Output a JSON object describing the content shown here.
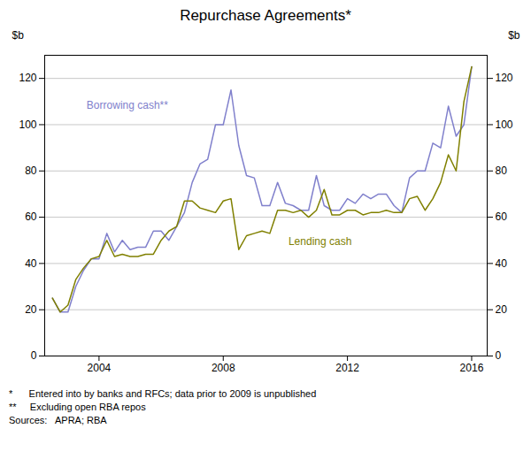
{
  "chart_data": {
    "type": "line",
    "title": "Repurchase Agreements*",
    "ylabel": "$b",
    "y2label": "$b",
    "x": [
      2002.5,
      2002.75,
      2003.0,
      2003.25,
      2003.5,
      2003.75,
      2004.0,
      2004.25,
      2004.5,
      2004.75,
      2005.0,
      2005.25,
      2005.5,
      2005.75,
      2006.0,
      2006.25,
      2006.5,
      2006.75,
      2007.0,
      2007.25,
      2007.5,
      2007.75,
      2008.0,
      2008.25,
      2008.5,
      2008.75,
      2009.0,
      2009.25,
      2009.5,
      2009.75,
      2010.0,
      2010.25,
      2010.5,
      2010.75,
      2011.0,
      2011.25,
      2011.5,
      2011.75,
      2012.0,
      2012.25,
      2012.5,
      2012.75,
      2013.0,
      2013.25,
      2013.5,
      2013.75,
      2014.0,
      2014.25,
      2014.5,
      2014.75,
      2015.0,
      2015.25,
      2015.5,
      2015.75,
      2016.0
    ],
    "series": [
      {
        "name": "Borrowing cash**",
        "color": "#8080cc",
        "values": [
          25,
          19,
          19,
          30,
          37,
          42,
          42,
          53,
          45,
          50,
          46,
          47,
          47,
          54,
          54,
          50,
          56,
          62,
          75,
          83,
          85,
          100,
          100,
          115,
          91,
          78,
          77,
          65,
          65,
          75,
          66,
          65,
          63,
          63,
          78,
          65,
          63,
          63,
          68,
          66,
          70,
          68,
          70,
          70,
          65,
          62,
          77,
          80,
          80,
          92,
          90,
          108,
          95,
          100,
          125
        ]
      },
      {
        "name": "Lending cash",
        "color": "#808000",
        "values": [
          25,
          19,
          22,
          33,
          38,
          42,
          43,
          50,
          43,
          44,
          43,
          43,
          44,
          44,
          50,
          54,
          56,
          67,
          67,
          64,
          63,
          62,
          67,
          68,
          46,
          52,
          53,
          54,
          53,
          63,
          63,
          62,
          63,
          60,
          63,
          72,
          61,
          61,
          63,
          63,
          61,
          62,
          62,
          63,
          62,
          62,
          68,
          69,
          63,
          68,
          75,
          87,
          80,
          110,
          125
        ]
      }
    ],
    "annotations": [
      {
        "text": "Borrowing cash**",
        "x": 2003.6,
        "y": 107,
        "color": "#8080cc"
      },
      {
        "text": "Lending cash",
        "x": 2010.1,
        "y": 48,
        "color": "#808000"
      }
    ],
    "footnotes": [
      "*      Entered into by banks and RFCs; data prior to 2009 is unpublished",
      "**     Excluding open RBA repos",
      "Sources:   APRA; RBA"
    ],
    "xlim": [
      2002.25,
      2016.5
    ],
    "xticks": [
      2004,
      2008,
      2012,
      2016
    ],
    "ylim": [
      0,
      130
    ],
    "yticks": [
      0,
      20,
      40,
      60,
      80,
      100,
      120
    ],
    "y2lim": [
      0,
      130
    ],
    "y2ticks": [
      0,
      20,
      40,
      60,
      80,
      100,
      120
    ],
    "grid": "y"
  }
}
